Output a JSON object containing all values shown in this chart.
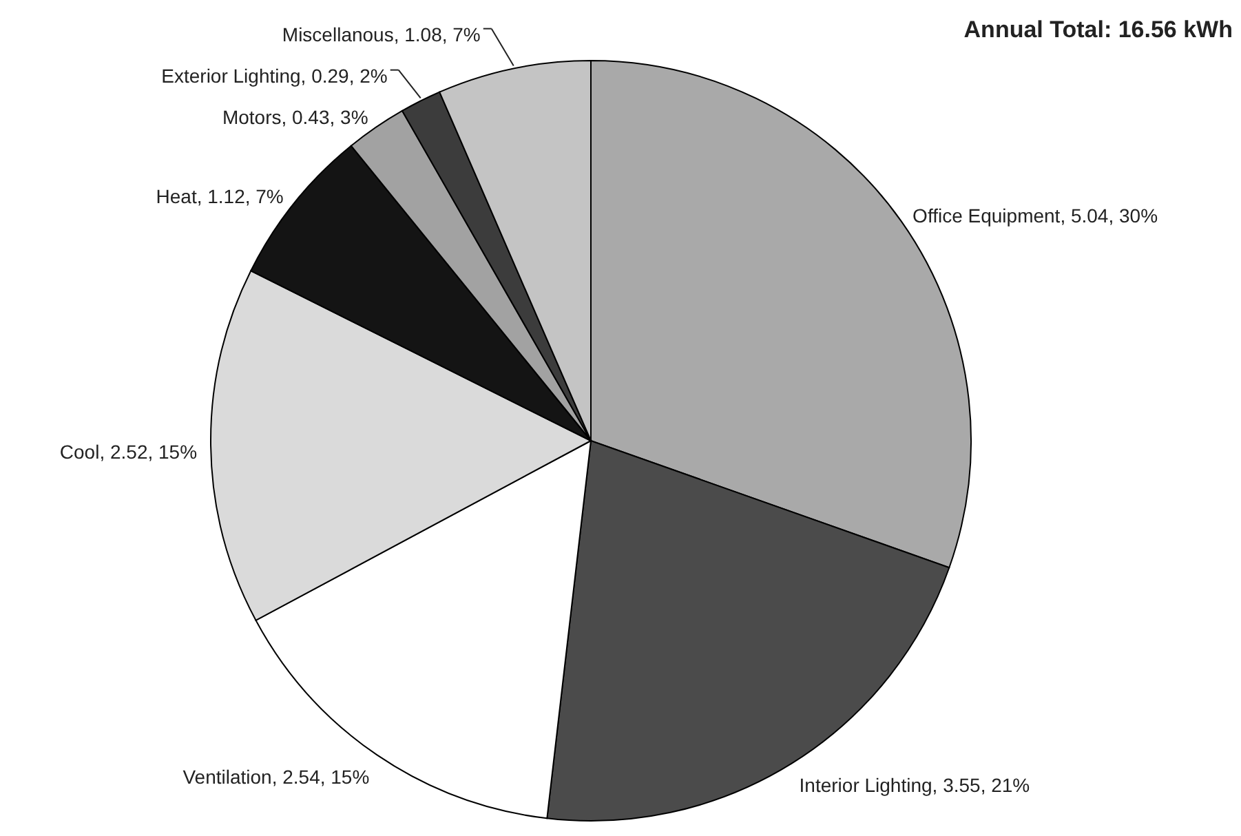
{
  "chart_data": {
    "type": "pie",
    "title": "Annual Total: 16.56 kWh",
    "categories": [
      "Office Equipment",
      "Interior Lighting",
      "Ventilation",
      "Cool",
      "Heat",
      "Motors",
      "Exterior Lighting",
      "Miscellanous"
    ],
    "values": [
      5.04,
      3.55,
      2.54,
      2.52,
      1.12,
      0.43,
      0.29,
      1.08
    ],
    "value_labels": [
      "5.04, 30%",
      "3.55, 21%",
      "2.54, 15%",
      "2.52, 15%",
      "1.12, 7%",
      "0.43, 3%",
      "0.29, 2%",
      "1.08, 7%"
    ],
    "colors": [
      "#a9a9a9",
      "#4b4b4b",
      "#ffffff",
      "#dadada",
      "#141414",
      "#a2a2a2",
      "#3c3c3c",
      "#c4c4c4"
    ]
  }
}
